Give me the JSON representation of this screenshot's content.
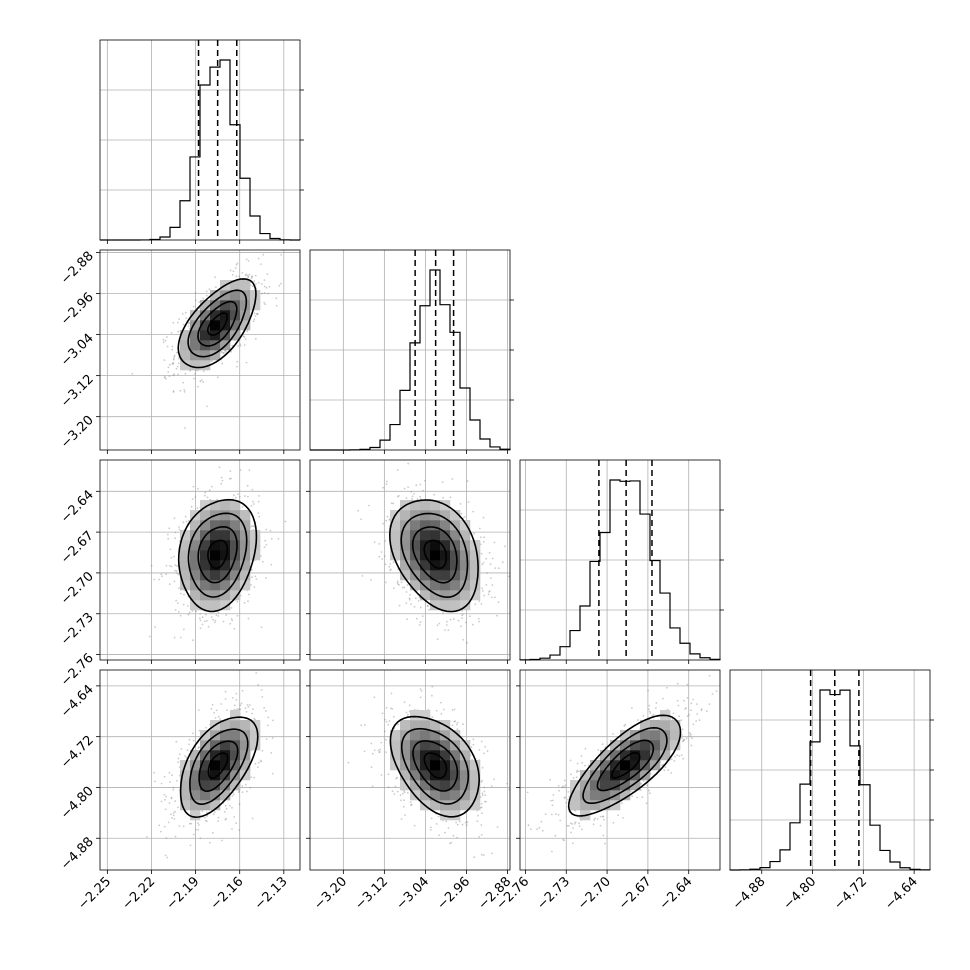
{
  "chart_data": {
    "type": "corner",
    "n_params": 4,
    "parameters": [
      {
        "mean": -2.175,
        "sd": 0.0125,
        "q16": -2.188,
        "q50": -2.175,
        "q84": -2.162,
        "range": [
          -2.255,
          -2.119
        ],
        "ticks": [
          "−2.25",
          "−2.22",
          "−2.19",
          "−2.16",
          "−2.13"
        ]
      },
      {
        "mean": -3.02,
        "sd": 0.041,
        "q16": -3.06,
        "q50": -3.02,
        "q84": -2.985,
        "range": [
          -3.265,
          -2.875
        ],
        "ticks": [
          "−3.20",
          "−3.12",
          "−3.04",
          "−2.96",
          "−2.88"
        ]
      },
      {
        "mean": -2.686,
        "sd": 0.0195,
        "q16": -2.706,
        "q50": -2.686,
        "q84": -2.667,
        "range": [
          -2.764,
          -2.617
        ],
        "ticks": [
          "−2.76",
          "−2.73",
          "−2.70",
          "−2.67",
          "−2.64"
        ]
      },
      {
        "mean": -4.765,
        "sd": 0.0375,
        "q16": -4.803,
        "q50": -4.765,
        "q84": -4.727,
        "range": [
          -4.93,
          -4.615
        ],
        "ticks": [
          "−4.88",
          "−4.80",
          "−4.72",
          "−4.64"
        ]
      }
    ],
    "correlations": [
      [
        1.0,
        0.6,
        0.2,
        0.55
      ],
      [
        0.6,
        1.0,
        -0.3,
        -0.4
      ],
      [
        0.2,
        -0.3,
        1.0,
        0.75
      ],
      [
        0.55,
        -0.4,
        0.75,
        1.0
      ]
    ],
    "quantiles": [
      0.16,
      0.5,
      0.84
    ],
    "contour_levels_sigma": [
      0.5,
      1.0,
      1.5,
      2.0
    ],
    "grid": true,
    "colors": {
      "points": "#8c8c8c",
      "lines": "#000000",
      "grid": "#b0b0b0"
    }
  }
}
